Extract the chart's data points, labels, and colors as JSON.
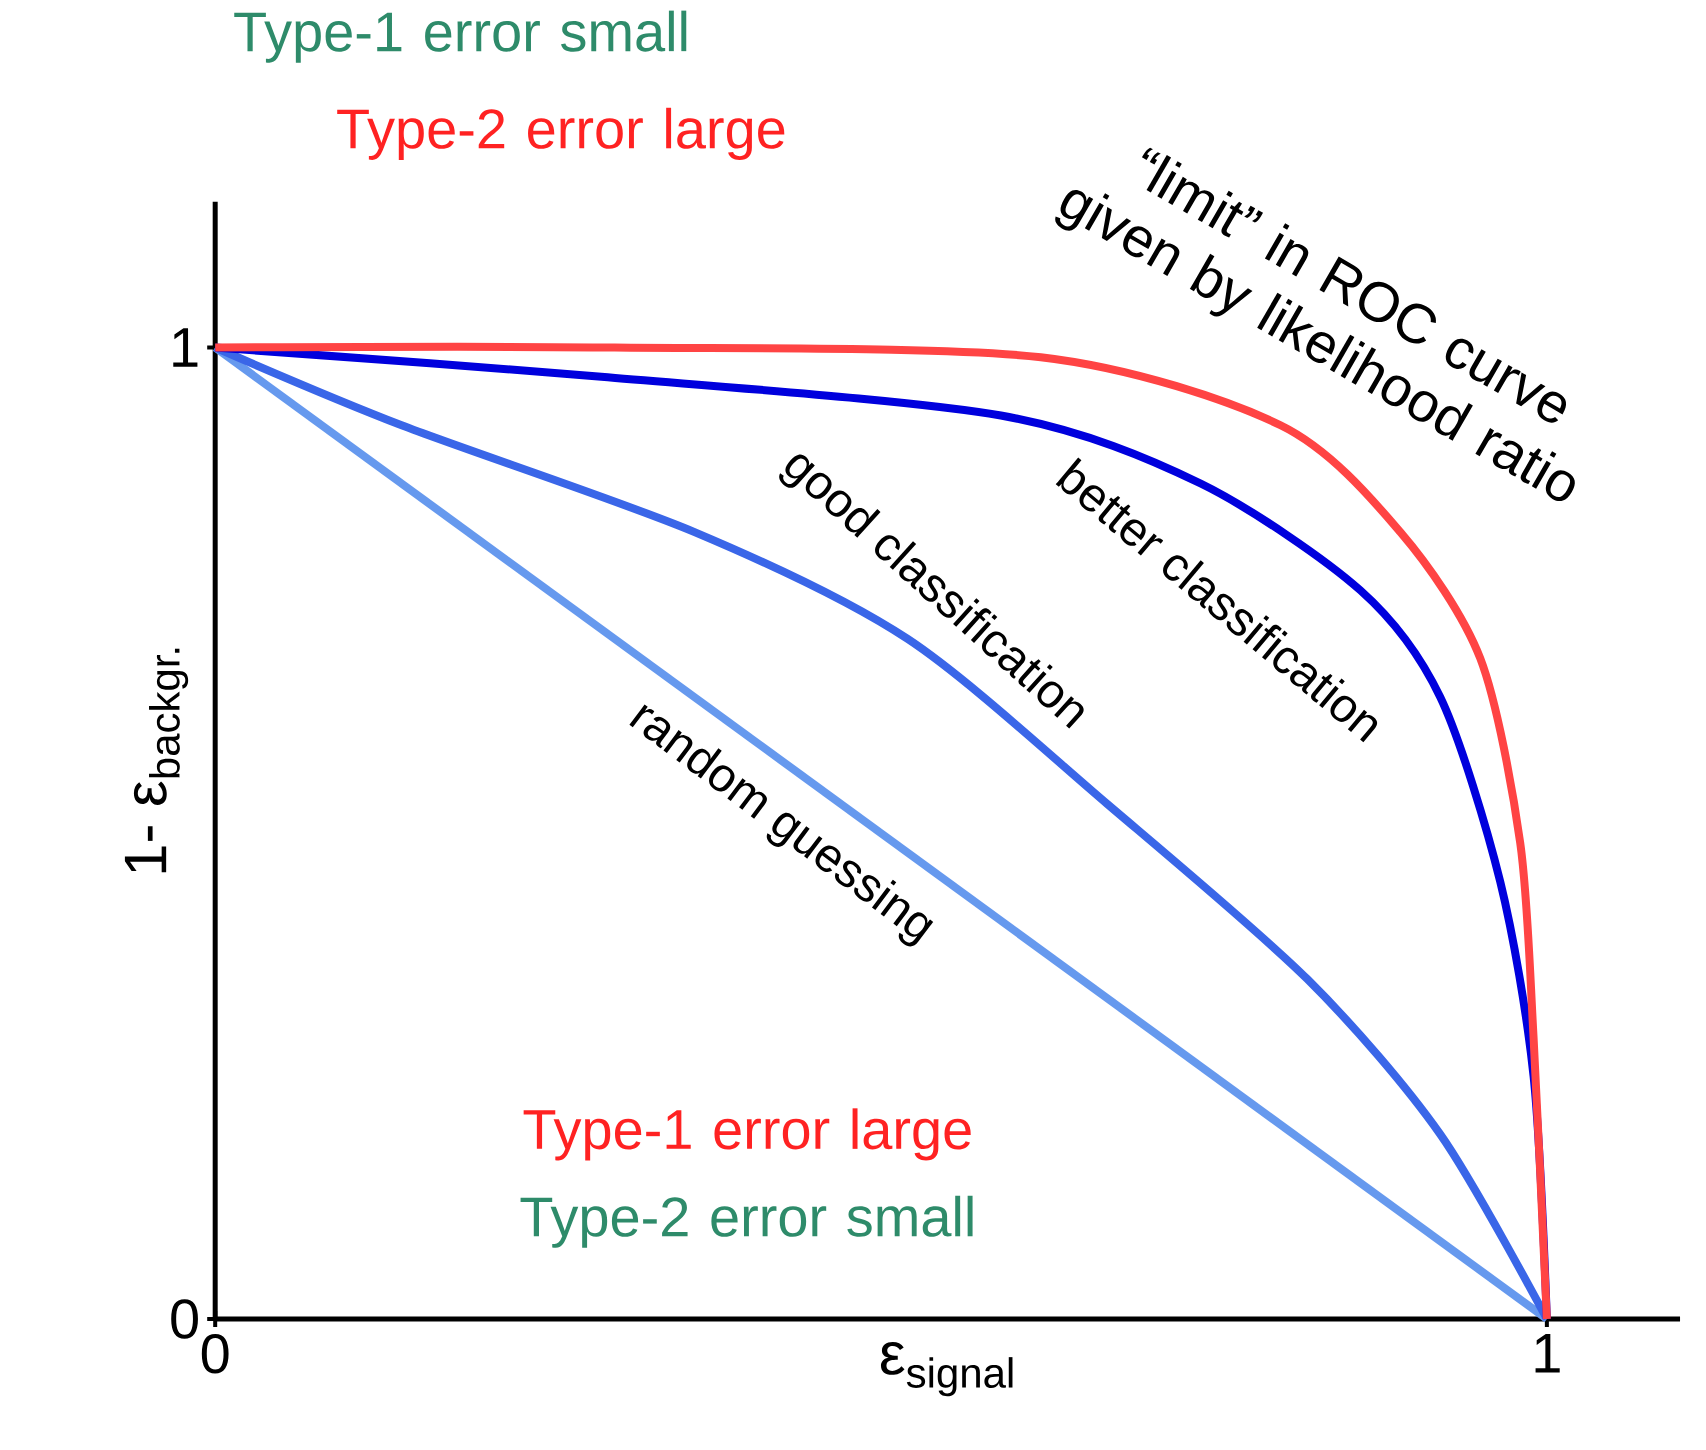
{
  "chart_data": {
    "type": "line",
    "xlabel": "ε$_{signal}$",
    "ylabel": "1- ε$_{backgr.}$",
    "xlim": [
      0,
      1.1
    ],
    "ylim": [
      0,
      1.15
    ],
    "xticks": [
      0,
      1
    ],
    "yticks": [
      0,
      1
    ],
    "series": [
      {
        "name": "random guessing",
        "color": "#6699ee",
        "x": [
          0,
          1
        ],
        "values": [
          1,
          0
        ]
      },
      {
        "name": "good classification",
        "color": "#3a66e8",
        "x": [
          0,
          0.14,
          0.36,
          0.52,
          0.67,
          0.82,
          0.92,
          1
        ],
        "values": [
          1,
          0.92,
          0.81,
          0.7,
          0.53,
          0.35,
          0.19,
          0
        ]
      },
      {
        "name": "better classification",
        "color": "#0000dd",
        "x": [
          0,
          0.29,
          0.59,
          0.74,
          0.86,
          0.92,
          0.965,
          0.99,
          1
        ],
        "values": [
          1,
          0.97,
          0.93,
          0.86,
          0.75,
          0.64,
          0.45,
          0.25,
          0
        ]
      },
      {
        "color": "#ff4444",
        "x": [
          0,
          0.3,
          0.62,
          0.8,
          0.89,
          0.95,
          0.98,
          0.99,
          1
        ],
        "values": [
          1,
          1,
          0.99,
          0.92,
          0.81,
          0.68,
          0.49,
          0.29,
          0
        ]
      }
    ],
    "annotations": [
      "Type-1 error small",
      "Type-2 error large",
      "Type-1 error large",
      "Type-2 error small",
      "“limit” in ROC curve given by likelihood ratio"
    ]
  }
}
